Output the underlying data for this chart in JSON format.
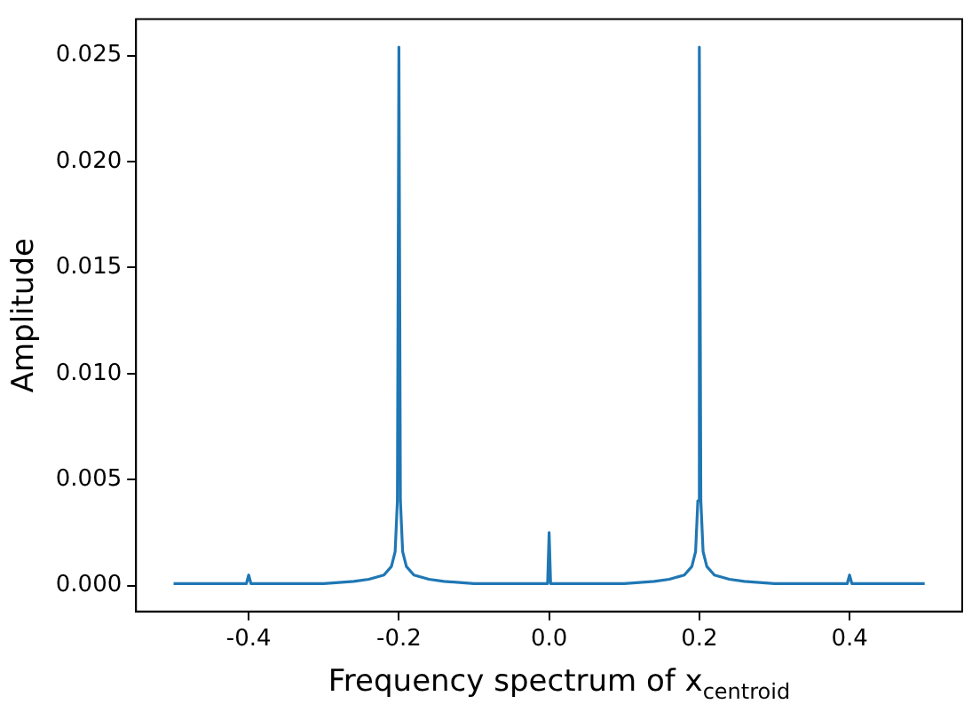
{
  "chart_data": {
    "type": "line",
    "xlabel": "Frequency spectrum of x$_{centroid}$",
    "ylabel": "Amplitude",
    "xlim": [
      -0.55,
      0.55
    ],
    "xticks": [
      {
        "value": -0.4,
        "label": "-0.4"
      },
      {
        "value": -0.2,
        "label": "-0.2"
      },
      {
        "value": 0,
        "label": "0.0"
      },
      {
        "value": 0.2,
        "label": "0.2"
      },
      {
        "value": 0.4,
        "label": "0.4"
      }
    ],
    "ylim": [
      -0.00122,
      0.02672
    ],
    "yticks": [
      {
        "value": 0,
        "label": "0.000"
      },
      {
        "value": 0.005,
        "label": "0.005"
      },
      {
        "value": 0.01,
        "label": "0.010"
      },
      {
        "value": 0.015,
        "label": "0.015"
      },
      {
        "value": 0.02,
        "label": "0.020"
      },
      {
        "value": 0.025,
        "label": "0.025"
      }
    ],
    "grid": false,
    "legend": false,
    "marker": "none",
    "line_style": "solid",
    "series": [
      {
        "color": "#1f77b4",
        "x": [
          -0.5,
          -0.45,
          -0.403,
          -0.4,
          -0.397,
          -0.3,
          -0.26,
          -0.24,
          -0.22,
          -0.21,
          -0.205,
          -0.202,
          -0.2,
          -0.198,
          -0.195,
          -0.19,
          -0.18,
          -0.16,
          -0.14,
          -0.1,
          -0.002,
          0.0,
          0.002,
          0.1,
          0.14,
          0.16,
          0.18,
          0.19,
          0.195,
          0.198,
          0.2,
          0.202,
          0.205,
          0.21,
          0.22,
          0.24,
          0.26,
          0.3,
          0.397,
          0.4,
          0.403,
          0.45,
          0.5
        ],
        "values": [
          0.0001,
          0.0001,
          0.0001,
          0.0005,
          0.0001,
          0.0001,
          0.0002,
          0.0003,
          0.0005,
          0.0009,
          0.0016,
          0.004,
          0.0254,
          0.004,
          0.0016,
          0.0009,
          0.0005,
          0.0003,
          0.0002,
          0.0001,
          0.0001,
          0.0025,
          0.0001,
          0.0001,
          0.0002,
          0.0003,
          0.0005,
          0.0009,
          0.0016,
          0.004,
          0.0254,
          0.004,
          0.0016,
          0.0009,
          0.0005,
          0.0003,
          0.0002,
          0.0001,
          0.0001,
          0.0005,
          0.0001,
          0.0001,
          0.0001
        ]
      }
    ]
  }
}
